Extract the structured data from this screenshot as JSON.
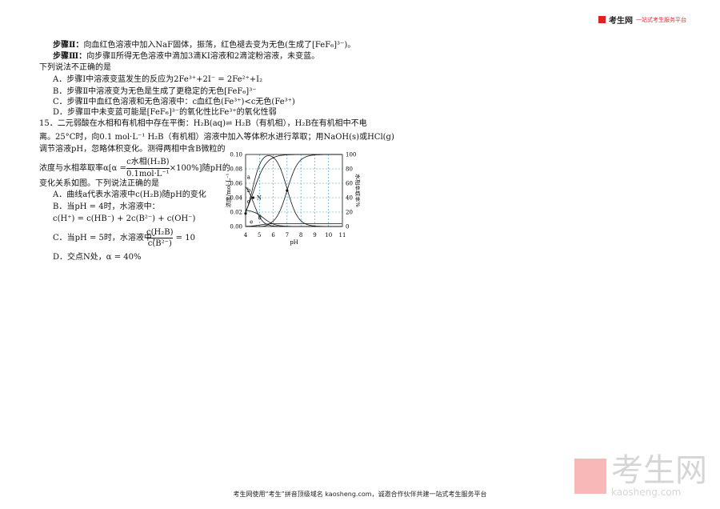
{
  "header": {
    "logo": "考生网",
    "slogan": "一站式考生服务平台",
    "accent": "#d22222"
  },
  "q14": {
    "step2_label": "步骤Ⅱ：",
    "step2": "向血红色溶液中加入NaF固体，振荡，红色褪去变为无色(生成了[FeF₆]³⁻)。",
    "step3_label": "步骤Ⅲ：",
    "step3": "向步骤Ⅱ所得无色溶液中滴加3滴KI溶液和2滴淀粉溶液，未变蓝。",
    "prompt": "下列说法不正确的是",
    "options": [
      "A．步骤Ⅰ中溶液变蓝发生的反应为2Fe³⁺+2I⁻ = 2Fe²⁺+I₂",
      "B．步骤Ⅱ中溶液变为无色是生成了更稳定的无色[FeF₆]³⁻",
      "C．步骤Ⅱ中血红色溶液和无色溶液中：c血红色(Fe³⁺)<c无色(Fe³⁺)",
      "D．步骤Ⅲ中未变蓝可能是[FeF₆]³⁻的氧化性比Fe³⁺的氧化性弱"
    ]
  },
  "q15": {
    "line1": "15．二元弱酸在水相和有机相中存在平衡：H₂B(aq)⇌ H₂B（有机相），H₂B在有机相中不电",
    "line2": "离。25°C时，向0.1 mol·L⁻¹ H₂B（有机相）溶液中加入等体积水进行萃取；用NaOH(s)或HCl(g)",
    "line3": "调节溶液pH，忽略体积变化。测得两相中含B微粒的",
    "line4_pre": "浓度与水相萃取率α",
    "formula_lhs": "α =",
    "formula_num": "c水相(H₂B)",
    "formula_den": "0.1mol·L⁻¹",
    "formula_rhs": "×100%",
    "line4_post": "随pH的",
    "line5": "变化关系如图。下列说法正确的是",
    "options": [
      "A．曲线a代表水溶液中c(H₂B)随pH的变化",
      "B．当pH = 4时，水溶液中：",
      "c(H⁺) = c(HB⁻) + 2c(B²⁻) + c(OH⁻)",
      "C．当pH = 5时，水溶液中：",
      "c(H₂B)",
      "c(B²⁻)",
      "= 10",
      "D．交点N处，α = 40%"
    ]
  },
  "figure": {
    "xlabel": "pH",
    "ylabel_left": "浓度/mol·L⁻¹",
    "ylabel_right": "水相萃取率%",
    "xticks": [
      "4",
      "5",
      "6",
      "7",
      "8",
      "9",
      "10",
      "11"
    ],
    "yticks_left": [
      "0.00",
      "0.02",
      "0.04",
      "0.06",
      "0.08",
      "0.10"
    ],
    "yticks_right": [
      "0",
      "20",
      "40",
      "60",
      "80",
      "100"
    ],
    "curve_labels": [
      "a",
      "b",
      "c",
      "d",
      "e",
      "N"
    ]
  },
  "footer": "考生网使用“考生”拼音顶级域名 kaosheng.com，诚邀合作伙伴共建一站式考生服务平台",
  "watermark": {
    "text": "考生网",
    "sub": "kaosheng.com"
  }
}
